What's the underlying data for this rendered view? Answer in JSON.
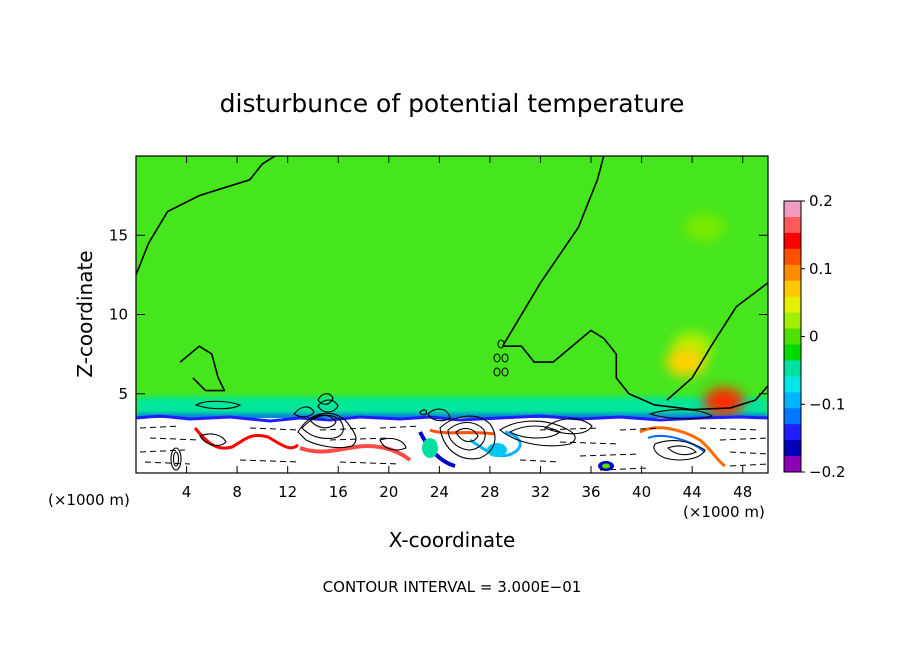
{
  "chart_data": {
    "type": "heatmap",
    "title": "disturbunce of potential temperature",
    "xlabel": "X-coordinate",
    "ylabel": "Z-coordinate",
    "x_unit_label": "(×1000 m)",
    "x_unit_label_right": "(×1000 m)",
    "xlim": [
      0,
      50
    ],
    "ylim": [
      0,
      20
    ],
    "x_ticks": [
      4,
      8,
      12,
      16,
      20,
      24,
      28,
      32,
      36,
      40,
      44,
      48
    ],
    "y_ticks": [
      5,
      10,
      15
    ],
    "colorbar": {
      "range": [
        -0.2,
        0.2
      ],
      "tick_values": [
        0.2,
        0.1,
        0,
        -0.1,
        -0.2
      ],
      "tick_labels": [
        "0.2",
        "0.1",
        "0",
        "−0.1",
        "−0.2"
      ],
      "colors": [
        "#f09bc3",
        "#ff5a5a",
        "#ff0000",
        "#ff5000",
        "#ff8c00",
        "#ffc800",
        "#e6ee00",
        "#a0ee00",
        "#50e000",
        "#00dc00",
        "#00e0a0",
        "#00e6e6",
        "#00b4ff",
        "#0078ff",
        "#1e1eff",
        "#0000b4",
        "#8c00b4"
      ]
    },
    "annotation": "CONTOUR INTERVAL = 3.000E−01",
    "background_value": 0,
    "background_color": "#46e61e",
    "features": [
      {
        "type": "band",
        "z_min": 3.5,
        "z_max": 4.8,
        "x_min": 0,
        "x_max": 50,
        "value": -0.05,
        "color": "#00e69a"
      },
      {
        "type": "band",
        "z_min": 3.3,
        "z_max": 3.7,
        "x_min": 0,
        "x_max": 50,
        "value": -0.12,
        "color": "#0064ff"
      },
      {
        "type": "blob",
        "x": 44,
        "z": 8,
        "value": 0.05,
        "color": "#b4ee00"
      },
      {
        "type": "blob",
        "x": 43.5,
        "z": 7,
        "value": 0.08,
        "color": "#ffd200"
      },
      {
        "type": "blob",
        "x": 46.5,
        "z": 4.5,
        "value": 0.15,
        "color": "#ff2a00"
      },
      {
        "type": "blob",
        "x": 45,
        "z": 15.5,
        "value": 0.02,
        "color": "#78ea00"
      }
    ],
    "contour_lines": [
      {
        "level": 0,
        "points": [
          [
            0,
            12.5
          ],
          [
            1,
            14.5
          ],
          [
            2.5,
            16.5
          ],
          [
            5,
            17.5
          ],
          [
            7,
            18
          ],
          [
            9,
            18.5
          ],
          [
            10,
            19.5
          ],
          [
            11,
            20
          ]
        ]
      },
      {
        "level": 0,
        "points": [
          [
            29,
            8
          ],
          [
            32,
            12
          ],
          [
            35,
            15.5
          ],
          [
            36.5,
            18.5
          ],
          [
            37,
            20
          ]
        ]
      },
      {
        "level": 0,
        "points": [
          [
            29,
            8
          ],
          [
            30.5,
            8
          ],
          [
            31.5,
            7
          ],
          [
            33,
            7
          ],
          [
            34.5,
            8
          ],
          [
            36,
            9
          ],
          [
            37,
            8.5
          ],
          [
            38,
            7.5
          ],
          [
            38,
            6
          ],
          [
            39,
            5
          ],
          [
            41,
            4.3
          ],
          [
            44,
            4
          ],
          [
            47,
            4.1
          ],
          [
            49,
            4.6
          ],
          [
            50,
            5.5
          ]
        ]
      },
      {
        "level": 0,
        "points": [
          [
            42,
            4.6
          ],
          [
            44,
            6
          ],
          [
            45.5,
            8
          ],
          [
            47.5,
            10.5
          ],
          [
            50,
            12
          ]
        ]
      },
      {
        "level": 0,
        "points": [
          [
            3.5,
            7
          ],
          [
            5,
            8
          ],
          [
            6,
            7.5
          ],
          [
            6.5,
            6
          ],
          [
            7,
            5.2
          ],
          [
            5.5,
            5.2
          ],
          [
            4.5,
            6
          ]
        ]
      }
    ]
  }
}
